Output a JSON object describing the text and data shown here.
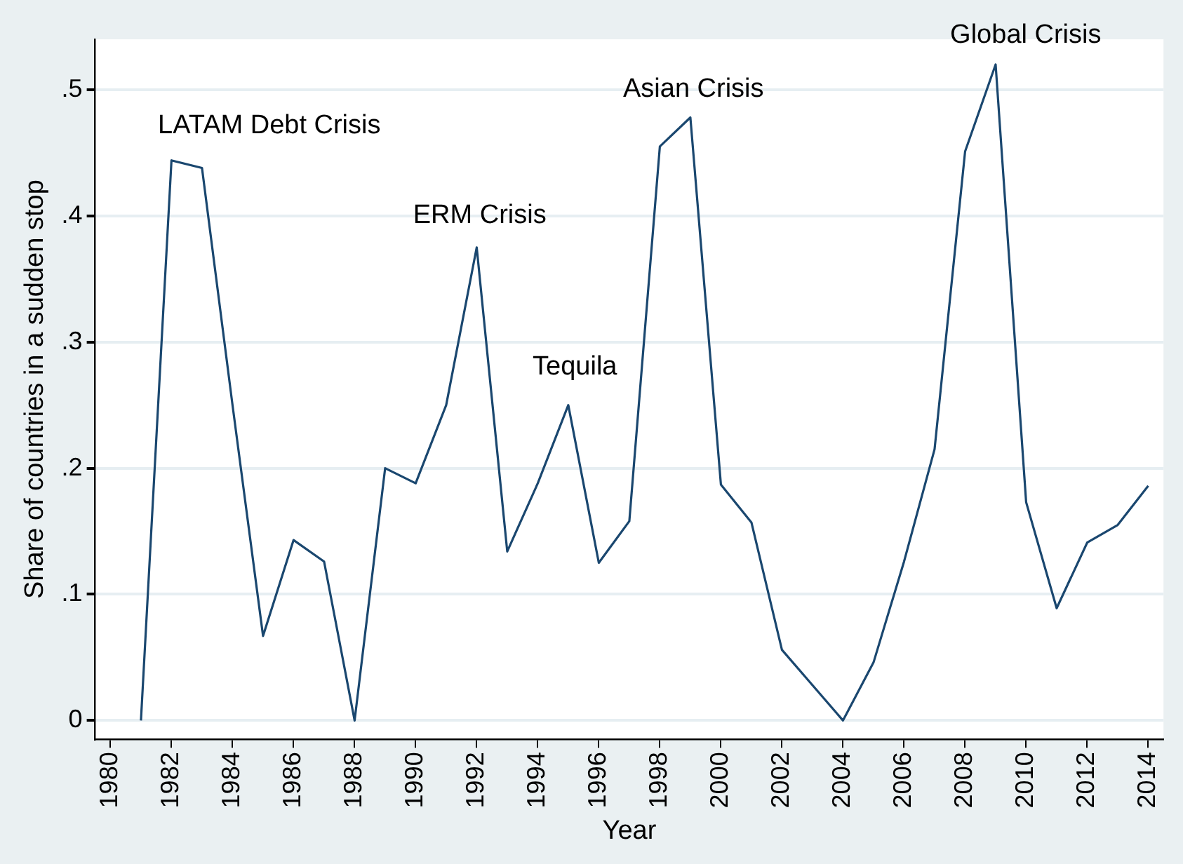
{
  "chart_data": {
    "type": "line",
    "xlabel": "Year",
    "ylabel": "Share of countries in a sudden stop",
    "x": [
      1981,
      1982,
      1983,
      1984,
      1985,
      1986,
      1987,
      1988,
      1989,
      1990,
      1991,
      1992,
      1993,
      1994,
      1995,
      1996,
      1997,
      1998,
      1999,
      2000,
      2001,
      2002,
      2003,
      2004,
      2005,
      2006,
      2007,
      2008,
      2009,
      2010,
      2011,
      2012,
      2013,
      2014
    ],
    "series": [
      {
        "color": "#1a476f",
        "values": [
          0,
          0.444,
          0.438,
          0.25,
          0.067,
          0.143,
          0.126,
          0,
          0.2,
          0.188,
          0.25,
          0.375,
          0.134,
          0.188,
          0.25,
          0.125,
          0.158,
          0.455,
          0.478,
          0.187,
          0.157,
          0.056,
          0.028,
          0,
          0.046,
          0.126,
          0.215,
          0.451,
          0.52,
          0.173,
          0.089,
          0.141,
          0.155,
          0.186
        ]
      }
    ],
    "xlim": [
      1979.5,
      2014.5
    ],
    "xticks": [
      1980,
      1982,
      1984,
      1986,
      1988,
      1990,
      1992,
      1994,
      1996,
      1998,
      2000,
      2002,
      2004,
      2006,
      2008,
      2010,
      2012,
      2014
    ],
    "ylim": [
      -0.015,
      0.54
    ],
    "yticks": [
      0,
      {
        "value": 0.1,
        "label": ".1"
      },
      {
        "value": 0.2,
        "label": ".2"
      },
      {
        "value": 0.3,
        "label": ".3"
      },
      {
        "value": 0.4,
        "label": ".4"
      },
      {
        "value": 0.5,
        "label": ".5"
      }
    ],
    "grid": "y",
    "legend": false,
    "marker": "none",
    "line_style": "solid",
    "annotations": [
      "LATAM Debt Crisis",
      "ERM Crisis",
      "Tequila",
      "Asian Crisis",
      "Global Crisis"
    ]
  }
}
